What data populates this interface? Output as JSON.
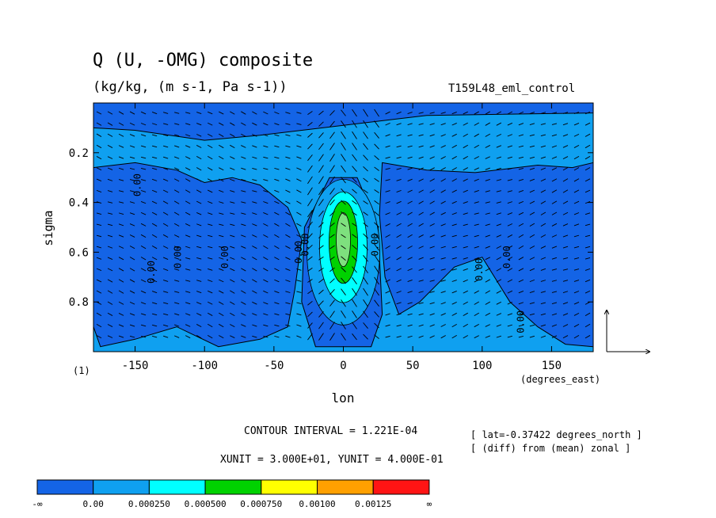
{
  "chart_data": {
    "type": "heatmap",
    "title": "Q (U, -OMG) composite",
    "subtitle": "(kg/kg, (m s-1, Pa s-1))",
    "run_name": "T159L48_eml_control",
    "xlabel": "lon",
    "x_units": "(degrees_east)",
    "ylabel": "sigma",
    "y_units": "(1)",
    "xlim": [
      -180,
      180
    ],
    "ylim": [
      1.0,
      0.0
    ],
    "x_ticks": [
      -150,
      -100,
      -50,
      0,
      50,
      100,
      150
    ],
    "y_ticks": [
      0.2,
      0.4,
      0.6,
      0.8
    ],
    "contour_label": "0.00",
    "contour_interval_text": "CONTOUR INTERVAL = 1.221E-04",
    "unit_vectors_text": "XUNIT = 3.000E+01, YUNIT = 4.000E-01",
    "lat_note": "[ lat=-0.37422 degrees_north ]",
    "diff_note": "[ (diff) from (mean) zonal ]",
    "color_levels": [
      "-∞",
      "0.00",
      "0.000250",
      "0.000500",
      "0.000750",
      "0.00100",
      "0.00125",
      "∞"
    ],
    "color_fills": [
      "#1464e6",
      "#0fa0f0",
      "#00ffff",
      "#00d200",
      "#ffff00",
      "#ffa000",
      "#ff1414"
    ]
  }
}
